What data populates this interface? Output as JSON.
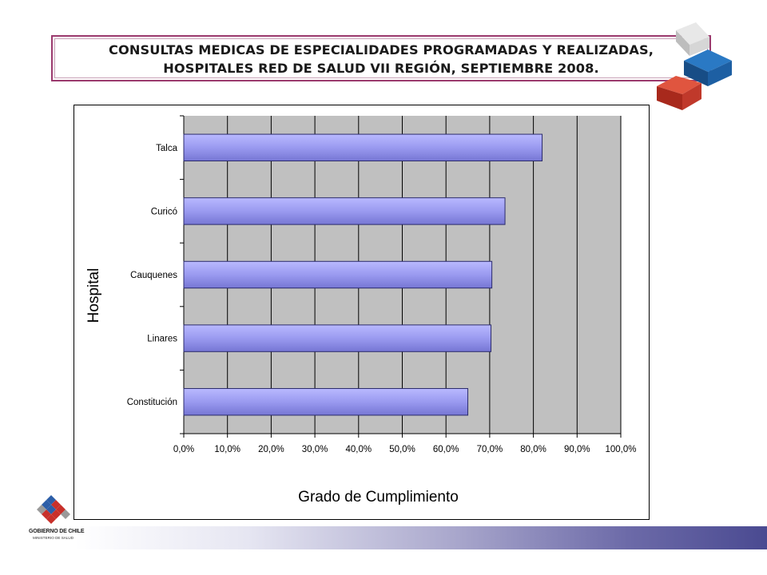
{
  "title": {
    "line1": "CONSULTAS MEDICAS DE ESPECIALIDADES PROGRAMADAS Y REALIZADAS,",
    "line2": "HOSPITALES RED DE SALUD VII REGIÓN, SEPTIEMBRE 2008."
  },
  "logo": {
    "name": "GOBIERNO DE CHILE",
    "ministry": "MINISTERIO DE SALUD",
    "icon": "chile-government-logo-icon"
  },
  "decoration": {
    "icon": "stacked-cubes-icon"
  },
  "colors": {
    "bar_fill": "#9a9af0",
    "bar_stroke": "#2b2b6b",
    "plot_bg": "#c0c0c0",
    "title_border": "#9b3a6e",
    "cube_blue": "#1d5fa3",
    "cube_red": "#c0392b",
    "cube_gray": "#cfcfcf"
  },
  "chart_data": {
    "type": "bar",
    "orientation": "horizontal",
    "categories": [
      "Talca",
      "Curicó",
      "Cauquenes",
      "Linares",
      "Constitución"
    ],
    "values": [
      0.82,
      0.735,
      0.705,
      0.703,
      0.65
    ],
    "xlabel": "Grado de Cumplimiento",
    "ylabel": "Hospital",
    "xlim": [
      0,
      1
    ],
    "xticks": [
      "0,0%",
      "10,0%",
      "20,0%",
      "30,0%",
      "40,0%",
      "50,0%",
      "60,0%",
      "70,0%",
      "80,0%",
      "90,0%",
      "100,0%"
    ],
    "grid": true,
    "legend": "none"
  }
}
